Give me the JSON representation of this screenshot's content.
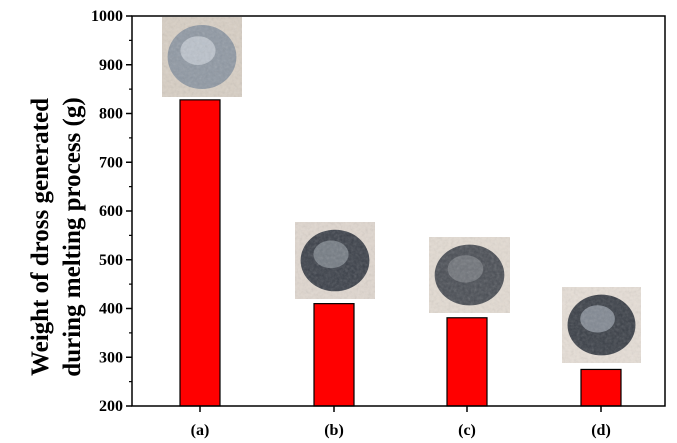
{
  "chart_data": {
    "type": "bar",
    "title": "",
    "xlabel": "",
    "ylabel_lines": [
      "Weight of dross generated",
      "during melting process (g)"
    ],
    "categories": [
      "(a)",
      "(b)",
      "(c)",
      "(d)"
    ],
    "values": [
      828,
      410,
      381,
      275
    ],
    "ylim": [
      200,
      1000
    ],
    "yticks": [
      "200",
      "300",
      "400",
      "500",
      "600",
      "700",
      "800",
      "900",
      "1000"
    ],
    "grid": false,
    "bar_color": "#ff0000",
    "thumbnail_icons": [
      "dross-photo-a",
      "dross-photo-b",
      "dross-photo-c",
      "dross-photo-d"
    ]
  }
}
